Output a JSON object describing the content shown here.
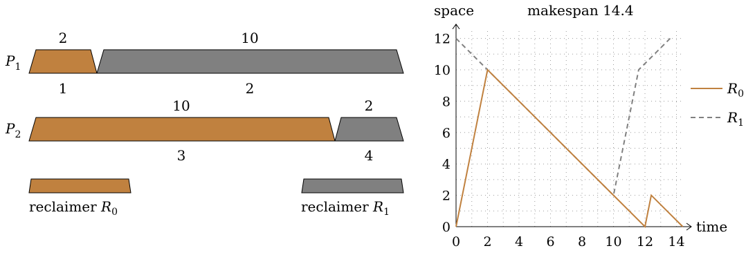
{
  "colors": {
    "orange": "#c0813f",
    "gray": "#808080",
    "dotted": "#9a9a9a",
    "dashed": "#808080"
  },
  "schedule": {
    "rows": [
      {
        "label": "P",
        "sub": "1",
        "blocks": [
          {
            "top": "2",
            "bottom": "1",
            "color": "orange"
          },
          {
            "top": "10",
            "bottom": "2",
            "color": "gray"
          }
        ]
      },
      {
        "label": "P",
        "sub": "2",
        "blocks": [
          {
            "top": "10",
            "bottom": "3",
            "color": "orange"
          },
          {
            "top": "2",
            "bottom": "4",
            "color": "gray"
          }
        ]
      }
    ],
    "reclaimers": [
      {
        "text": "reclaimer ",
        "sym": "R",
        "sub": "0",
        "color": "orange"
      },
      {
        "text": "reclaimer ",
        "sym": "R",
        "sub": "1",
        "color": "gray"
      }
    ]
  },
  "chart": {
    "ylabel": "space",
    "xlabel": "time",
    "title": "makespan 14.4"
  },
  "chart_data": {
    "type": "line",
    "title": "makespan 14.4",
    "xlabel": "time",
    "ylabel": "space",
    "xlim": [
      0,
      14.4
    ],
    "ylim": [
      0,
      12
    ],
    "xticks": [
      0,
      2,
      4,
      6,
      8,
      10,
      12,
      14
    ],
    "yticks": [
      0,
      2,
      4,
      6,
      8,
      10,
      12
    ],
    "grid": "dotted",
    "legend": "right",
    "series": [
      {
        "name": "R0",
        "sym": "R",
        "sub": "0",
        "style": "solid",
        "color": "orange",
        "points": [
          [
            0,
            0
          ],
          [
            2,
            10
          ],
          [
            12,
            0
          ],
          [
            12.4,
            2
          ],
          [
            14.4,
            0
          ]
        ]
      },
      {
        "name": "R1",
        "sym": "R",
        "sub": "1",
        "style": "dashed",
        "color": "gray",
        "points": [
          [
            0,
            12
          ],
          [
            2,
            10
          ],
          [
            10,
            2
          ],
          [
            11.6,
            10
          ],
          [
            13.6,
            12
          ]
        ]
      }
    ]
  }
}
